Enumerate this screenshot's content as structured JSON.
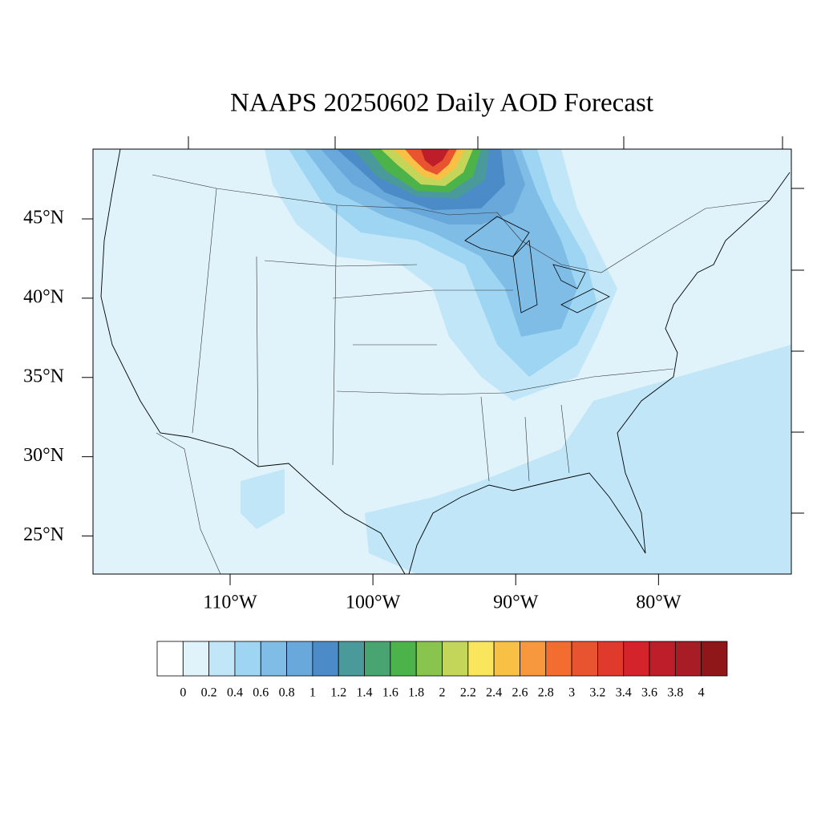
{
  "title": "NAAPS 20250602 Daily AOD Forecast",
  "map": {
    "lon_range": [
      -119.6,
      -70.7
    ],
    "lat_range": [
      22.6,
      49.4
    ],
    "lat_ticks": [
      {
        "value": 45,
        "label": "45°N"
      },
      {
        "value": 40,
        "label": "40°N"
      },
      {
        "value": 35,
        "label": "35°N"
      },
      {
        "value": 30,
        "label": "30°N"
      },
      {
        "value": 25,
        "label": "25°N"
      }
    ],
    "lon_ticks": [
      {
        "value": -110,
        "label": "110°W"
      },
      {
        "value": -100,
        "label": "100°W"
      },
      {
        "value": -90,
        "label": "90°W"
      },
      {
        "value": -80,
        "label": "80°W"
      }
    ]
  },
  "colorbar": {
    "levels": [
      0,
      0.2,
      0.4,
      0.6,
      0.8,
      1,
      1.2,
      1.4,
      1.6,
      1.8,
      2,
      2.2,
      2.4,
      2.6,
      2.8,
      3,
      3.2,
      3.4,
      3.6,
      3.8,
      4
    ],
    "colors": [
      "#ffffff",
      "#e0f3fb",
      "#c0e6f7",
      "#9ed5f2",
      "#7fbde6",
      "#68a8da",
      "#4a8bc8",
      "#4a9a9c",
      "#48a572",
      "#4cb34a",
      "#88c44e",
      "#c3d65a",
      "#f9e65c",
      "#f8c045",
      "#f7973e",
      "#f46d30",
      "#e85430",
      "#e03a2c",
      "#d4232b",
      "#be1e2a",
      "#a81c25",
      "#901719"
    ]
  }
}
